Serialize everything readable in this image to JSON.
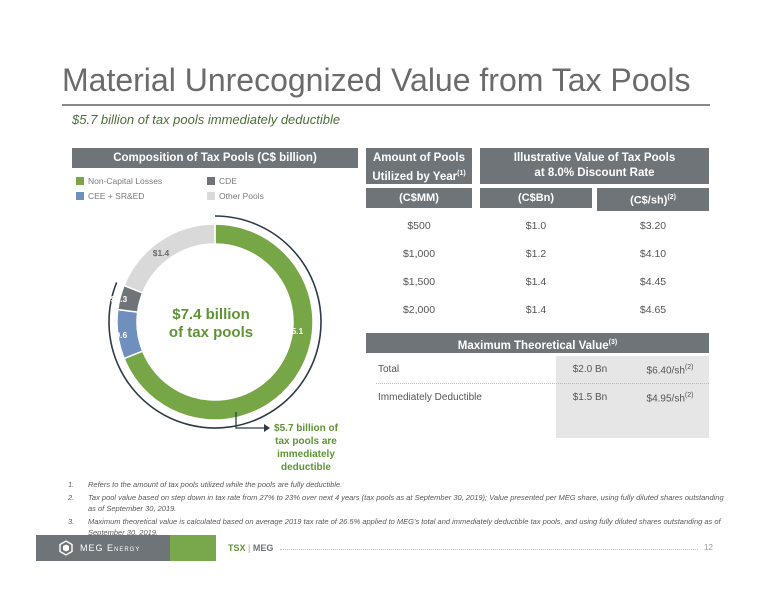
{
  "title": "Material Unrecognized Value from Tax Pools",
  "subtitle": "$5.7 billion of tax pools immediately deductible",
  "composition": {
    "header": "Composition of Tax Pools (C$ billion)",
    "legend": [
      {
        "label": "Non-Capital Losses",
        "color": "#76a646"
      },
      {
        "label": "CDE",
        "color": "#6e7478"
      },
      {
        "label": "CEE + SR&ED",
        "color": "#6f8fbd"
      },
      {
        "label": "Other Pools",
        "color": "#d9d9d9"
      }
    ],
    "center_line1": "$7.4 billion",
    "center_line2": "of tax pools",
    "slice_labels": {
      "ncl": "$5.1",
      "cee": "$0.6",
      "cde": "$0.3",
      "other": "$1.4"
    },
    "callout": "$5.7 billion of tax pools are immediately deductible"
  },
  "chart_data": {
    "type": "pie",
    "title": "Composition of Tax Pools (C$ billion)",
    "categories": [
      "Non-Capital Losses",
      "CEE + SR&ED",
      "CDE",
      "Other Pools"
    ],
    "values": [
      5.1,
      0.6,
      0.3,
      1.4
    ],
    "colors": [
      "#76a646",
      "#6f8fbd",
      "#6e7478",
      "#d9d9d9"
    ]
  },
  "table": {
    "col1_header": "Amount of Pools Utilized by Year",
    "col1_sup": "(1)",
    "col2_header": "Illustrative Value of Tax Pools at 8.0% Discount Rate",
    "sub1": "(C$MM)",
    "sub2": "(C$Bn)",
    "sub3": "(C$/sh)",
    "sub3_sup": "(2)",
    "rows": [
      {
        "a": "$500",
        "b": "$1.0",
        "c": "$3.20"
      },
      {
        "a": "$1,000",
        "b": "$1.2",
        "c": "$4.10"
      },
      {
        "a": "$1,500",
        "b": "$1.4",
        "c": "$4.45"
      },
      {
        "a": "$2,000",
        "b": "$1.4",
        "c": "$4.65"
      }
    ]
  },
  "mtv": {
    "header": "Maximum Theoretical Value",
    "header_sup": "(3)",
    "rows": [
      {
        "label": "Total",
        "bn": "$2.0 Bn",
        "sh": "$6.40/sh",
        "sup": "(2)"
      },
      {
        "label": "Immediately Deductible",
        "bn": "$1.5 Bn",
        "sh": "$4.95/sh",
        "sup": "(2)"
      }
    ]
  },
  "notes": [
    {
      "num": "1.",
      "text": "Refers to the amount of tax pools utilized while the pools are fully deductible."
    },
    {
      "num": "2.",
      "text": "Tax pool value based on step down in tax rate from 27% to 23% over next 4 years (tax pools as at September 30, 2019); Value presented per MEG share, using fully diluted shares outstanding as of September 30, 2019."
    },
    {
      "num": "3.",
      "text": "Maximum theoretical value is calculated based on average 2019 tax rate of 26.5% applied to MEG's total and immediately deductible tax pools, and using fully diluted shares outstanding as of September 30, 2019."
    }
  ],
  "footer": {
    "logo_text": "MEG Energy",
    "ticker_prefix": "TSX",
    "ticker_sep": "|",
    "ticker": "MEG",
    "page": "12"
  }
}
